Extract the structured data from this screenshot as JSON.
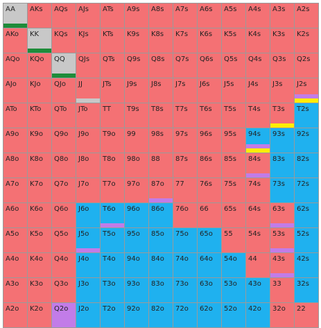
{
  "colors": {
    "red": "#f47174",
    "blue": "#1fb1ef",
    "gray": "#c8c8c8",
    "green": "#1e8c3a",
    "purple": "#c27ce8",
    "yellow": "#ffee00",
    "grid_line": "#9a9a9a",
    "text": "#222222"
  },
  "hands": [
    [
      "AA",
      "AKs",
      "AQs",
      "AJs",
      "ATs",
      "A9s",
      "A8s",
      "A7s",
      "A6s",
      "A5s",
      "A4s",
      "A3s",
      "A2s"
    ],
    [
      "AKo",
      "KK",
      "KQs",
      "KJs",
      "KTs",
      "K9s",
      "K8s",
      "K7s",
      "K6s",
      "K5s",
      "K4s",
      "K3s",
      "K2s"
    ],
    [
      "AQo",
      "KQo",
      "QQ",
      "QJs",
      "QTs",
      "Q9s",
      "Q8s",
      "Q7s",
      "Q6s",
      "Q5s",
      "Q4s",
      "Q3s",
      "Q2s"
    ],
    [
      "AJo",
      "KJo",
      "QJo",
      "JJ",
      "JTs",
      "J9s",
      "J8s",
      "J7s",
      "J6s",
      "J5s",
      "J4s",
      "J3s",
      "J2s"
    ],
    [
      "ATo",
      "KTo",
      "QTo",
      "JTo",
      "TT",
      "T9s",
      "T8s",
      "T7s",
      "T6s",
      "T5s",
      "T4s",
      "T3s",
      "T2s"
    ],
    [
      "A9o",
      "K9o",
      "Q9o",
      "J9o",
      "T9o",
      "99",
      "98s",
      "97s",
      "96s",
      "95s",
      "94s",
      "93s",
      "92s"
    ],
    [
      "A8o",
      "K8o",
      "Q8o",
      "J8o",
      "T8o",
      "98o",
      "88",
      "87s",
      "86s",
      "85s",
      "84s",
      "83s",
      "82s"
    ],
    [
      "A7o",
      "K7o",
      "Q7o",
      "J7o",
      "T7o",
      "97o",
      "87o",
      "77",
      "76s",
      "75s",
      "74s",
      "73s",
      "72s"
    ],
    [
      "A6o",
      "K6o",
      "Q6o",
      "J6o",
      "T6o",
      "96o",
      "86o",
      "76o",
      "66",
      "65s",
      "64s",
      "63s",
      "62s"
    ],
    [
      "A5o",
      "K5o",
      "Q5o",
      "J5o",
      "T5o",
      "95o",
      "85o",
      "75o",
      "65o",
      "55",
      "54s",
      "53s",
      "52s"
    ],
    [
      "A4o",
      "K4o",
      "Q4o",
      "J4o",
      "T4o",
      "94o",
      "84o",
      "74o",
      "64o",
      "54o",
      "44",
      "43s",
      "42s"
    ],
    [
      "A3o",
      "K3o",
      "Q3o",
      "J3o",
      "T3o",
      "93o",
      "83o",
      "73o",
      "63o",
      "53o",
      "43o",
      "33",
      "32s"
    ],
    [
      "A2o",
      "K2o",
      "Q2o",
      "J2o",
      "T2o",
      "92o",
      "82o",
      "72o",
      "62o",
      "52o",
      "42o",
      "32o",
      "22"
    ]
  ],
  "fills": [
    [
      "g",
      "r",
      "r",
      "r",
      "r",
      "r",
      "r",
      "r",
      "r",
      "r",
      "r",
      "r",
      "r"
    ],
    [
      "r",
      "g",
      "r",
      "r",
      "r",
      "r",
      "r",
      "r",
      "r",
      "r",
      "r",
      "r",
      "r"
    ],
    [
      "r",
      "r",
      "g",
      "r",
      "r",
      "r",
      "r",
      "r",
      "r",
      "r",
      "r",
      "r",
      "r"
    ],
    [
      "r",
      "r",
      "r",
      "r",
      "r",
      "r",
      "r",
      "r",
      "r",
      "r",
      "r",
      "r",
      "r"
    ],
    [
      "r",
      "r",
      "r",
      "r",
      "r",
      "r",
      "r",
      "r",
      "r",
      "r",
      "r",
      "r",
      "b"
    ],
    [
      "r",
      "r",
      "r",
      "r",
      "r",
      "r",
      "r",
      "r",
      "r",
      "r",
      "b",
      "b",
      "b"
    ],
    [
      "r",
      "r",
      "r",
      "r",
      "r",
      "r",
      "r",
      "r",
      "r",
      "r",
      "r",
      "b",
      "b"
    ],
    [
      "r",
      "r",
      "r",
      "r",
      "r",
      "r",
      "r",
      "r",
      "r",
      "r",
      "r",
      "b",
      "b"
    ],
    [
      "r",
      "r",
      "r",
      "b",
      "b",
      "b",
      "b",
      "r",
      "r",
      "r",
      "r",
      "r",
      "b"
    ],
    [
      "r",
      "r",
      "r",
      "b",
      "b",
      "b",
      "b",
      "b",
      "b",
      "r",
      "r",
      "r",
      "b"
    ],
    [
      "r",
      "r",
      "r",
      "b",
      "b",
      "b",
      "b",
      "b",
      "b",
      "b",
      "r",
      "r",
      "b"
    ],
    [
      "r",
      "r",
      "r",
      "b",
      "b",
      "b",
      "b",
      "b",
      "b",
      "b",
      "b",
      "r",
      "b"
    ],
    [
      "r",
      "r",
      "p",
      "b",
      "b",
      "b",
      "b",
      "b",
      "b",
      "b",
      "b",
      "r",
      "r"
    ]
  ],
  "markers": {
    "0,0": [
      "green"
    ],
    "1,1": [
      "green"
    ],
    "2,2": [
      "green"
    ],
    "3,3": [
      "gray"
    ],
    "3,12": [
      "yellow",
      "purple"
    ],
    "4,11": [
      "yellow"
    ],
    "5,10": [
      "yellow",
      "purple"
    ],
    "6,10": [
      "purple"
    ],
    "7,6": [
      "purple"
    ],
    "8,4": [
      "purple"
    ],
    "8,11": [
      "purple"
    ],
    "9,3": [
      "purple"
    ],
    "9,11": [
      "purple"
    ],
    "10,11": [
      "purple"
    ],
    "12,2": [
      "purple"
    ]
  }
}
